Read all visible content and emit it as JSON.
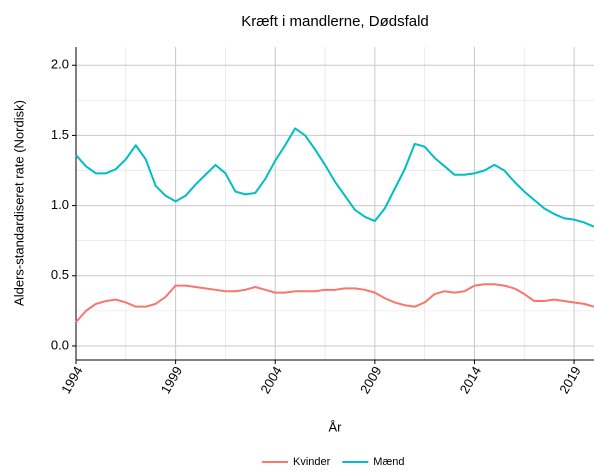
{
  "chart_data": {
    "type": "line",
    "title": "Kræft i mandlerne, Dødsfald",
    "x_label": "År",
    "y_label": "Alders-standardiseret rate (Nordisk)",
    "x": [
      1994,
      1994.5,
      1995,
      1995.5,
      1996,
      1996.5,
      1997,
      1997.5,
      1998,
      1998.5,
      1999,
      1999.5,
      2000,
      2000.5,
      2001,
      2001.5,
      2002,
      2002.5,
      2003,
      2003.5,
      2004,
      2004.5,
      2005,
      2005.5,
      2006,
      2006.5,
      2007,
      2007.5,
      2008,
      2008.5,
      2009,
      2009.5,
      2010,
      2010.5,
      2011,
      2011.5,
      2012,
      2012.5,
      2013,
      2013.5,
      2014,
      2014.5,
      2015,
      2015.5,
      2016,
      2016.5,
      2017,
      2017.5,
      2018,
      2018.5,
      2019,
      2019.5,
      2020
    ],
    "series": [
      {
        "name": "Kvinder",
        "color": "#F8766D",
        "values": [
          0.17,
          0.25,
          0.3,
          0.32,
          0.33,
          0.31,
          0.28,
          0.28,
          0.3,
          0.35,
          0.43,
          0.43,
          0.42,
          0.41,
          0.4,
          0.39,
          0.39,
          0.4,
          0.42,
          0.4,
          0.38,
          0.38,
          0.39,
          0.39,
          0.39,
          0.4,
          0.4,
          0.41,
          0.41,
          0.4,
          0.38,
          0.34,
          0.31,
          0.29,
          0.28,
          0.31,
          0.37,
          0.39,
          0.38,
          0.39,
          0.43,
          0.44,
          0.44,
          0.43,
          0.41,
          0.37,
          0.32,
          0.32,
          0.33,
          0.32,
          0.31,
          0.3,
          0.28
        ]
      },
      {
        "name": "Mænd",
        "color": "#00BFC4",
        "values": [
          1.36,
          1.28,
          1.23,
          1.23,
          1.26,
          1.33,
          1.43,
          1.33,
          1.14,
          1.07,
          1.03,
          1.07,
          1.15,
          1.22,
          1.29,
          1.23,
          1.1,
          1.08,
          1.09,
          1.19,
          1.32,
          1.43,
          1.55,
          1.5,
          1.4,
          1.29,
          1.17,
          1.07,
          0.97,
          0.92,
          0.89,
          0.98,
          1.12,
          1.26,
          1.44,
          1.42,
          1.34,
          1.28,
          1.22,
          1.22,
          1.23,
          1.25,
          1.29,
          1.25,
          1.17,
          1.1,
          1.04,
          0.98,
          0.94,
          0.91,
          0.9,
          0.88,
          0.85
        ]
      }
    ],
    "xlim": [
      1994,
      2020
    ],
    "xticks": [
      1994,
      1999,
      2004,
      2009,
      2014,
      2019
    ],
    "ylim": [
      -0.1,
      2.13
    ],
    "yticks": [
      {
        "value": 0,
        "label": "0.0"
      },
      {
        "value": 0.5,
        "label": "0.5"
      },
      {
        "value": 1,
        "label": "1.0"
      },
      {
        "value": 1.5,
        "label": "1.5"
      },
      {
        "value": 2,
        "label": "2.0"
      }
    ],
    "grid": true,
    "legend": "bottom"
  }
}
